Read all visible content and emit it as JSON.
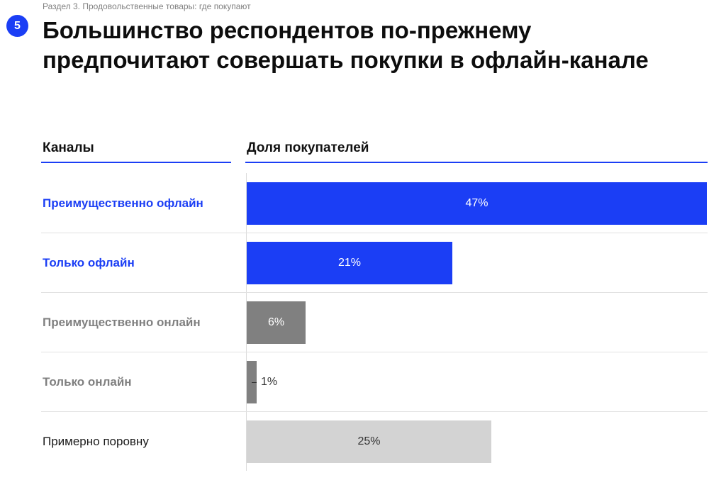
{
  "header": {
    "section_label": "Раздел 3. Продовольственные товары: где покупают",
    "slide_number": "5",
    "title": "Большинство респондентов по-прежнему предпочитают совершать покупки в офлайн-канале"
  },
  "colors": {
    "accent_blue": "#1b3ef5",
    "dark_gray": "#808080",
    "light_gray": "#d3d3d3",
    "label_gray": "#808080",
    "text_dark": "#1a1a1a"
  },
  "chart_data": {
    "type": "bar",
    "orientation": "horizontal",
    "column_headers": {
      "category": "Каналы",
      "value": "Доля покупателей"
    },
    "categories": [
      "Преимущественно офлайн",
      "Только офлайн",
      "Преимущественно онлайн",
      "Только онлайн",
      "Примерно поровну"
    ],
    "values": [
      47,
      21,
      6,
      1,
      25
    ],
    "value_labels": [
      "47%",
      "21%",
      "6%",
      "1%",
      "25%"
    ],
    "bar_colors": [
      "#1b3ef5",
      "#1b3ef5",
      "#808080",
      "#808080",
      "#d3d3d3"
    ],
    "label_colors": [
      "#1b3ef5",
      "#1b3ef5",
      "#808080",
      "#808080",
      "#1a1a1a"
    ],
    "label_bold": [
      true,
      true,
      true,
      true,
      false
    ],
    "xlim": [
      0,
      47
    ],
    "grid": false,
    "legend": "none"
  }
}
